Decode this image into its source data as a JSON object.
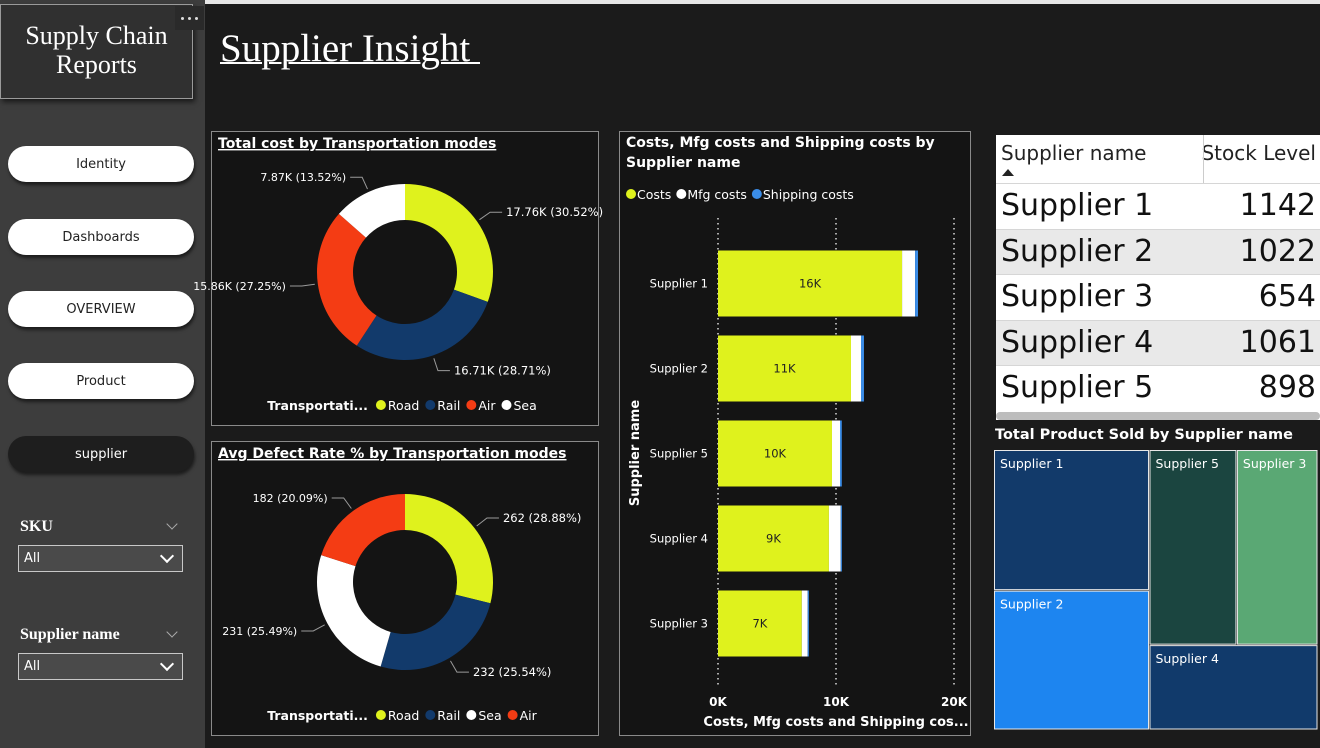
{
  "sidebar": {
    "title": "Supply Chain Reports",
    "buttons": [
      "Identity",
      "Dashboards",
      "OVERVIEW",
      "Product",
      "supplier"
    ],
    "slicers": [
      {
        "label": "SKU",
        "value": "All"
      },
      {
        "label": "Supplier name",
        "value": "All"
      }
    ]
  },
  "header": {
    "title": "Supplier Insight "
  },
  "table": {
    "columns": [
      "Supplier name",
      "Stock Level"
    ],
    "rows": [
      [
        "Supplier 1",
        1142
      ],
      [
        "Supplier 2",
        1022
      ],
      [
        "Supplier 3",
        654
      ],
      [
        "Supplier 4",
        1061
      ],
      [
        "Supplier 5",
        898
      ]
    ]
  },
  "chart_data": [
    {
      "type": "donut",
      "title": "Total cost by Transportation modes",
      "legend_title": "Transportati...",
      "categories": [
        "Road",
        "Rail",
        "Air",
        "Sea"
      ],
      "values": [
        17760,
        16710,
        15860,
        7870
      ],
      "value_labels": [
        "17.76K (30.52%)",
        "16.71K (28.71%)",
        "15.86K (27.25%)",
        "7.87K (13.52%)"
      ],
      "colors": [
        "#dff21d",
        "#123a6b",
        "#f43c14",
        "#ffffff"
      ]
    },
    {
      "type": "donut",
      "title": "Avg Defect Rate % by Transportation modes",
      "legend_title": "Transportati...",
      "categories": [
        "Road",
        "Rail",
        "Sea",
        "Air"
      ],
      "values": [
        262,
        232,
        231,
        182
      ],
      "value_labels": [
        "262 (28.88%)",
        "232 (25.54%)",
        "231 (25.49%)",
        "182 (20.09%)"
      ],
      "colors": [
        "#dff21d",
        "#123a6b",
        "#ffffff",
        "#f43c14"
      ]
    },
    {
      "type": "bar",
      "orientation": "horizontal",
      "stacked": true,
      "title": "Costs, Mfg costs and Shipping costs by Supplier name",
      "x_label": "Costs, Mfg costs and Shipping cos...",
      "y_label": "Supplier name",
      "categories": [
        "Supplier 1",
        "Supplier 2",
        "Supplier 5",
        "Supplier 4",
        "Supplier 3"
      ],
      "series": [
        {
          "name": "Costs",
          "color": "#dff21d",
          "values": [
            15600,
            11270,
            9660,
            9400,
            7100
          ],
          "value_labels": [
            "16K",
            "11K",
            "10K",
            "9K",
            "7K"
          ]
        },
        {
          "name": "Mfg costs",
          "color": "#ffffff",
          "values": [
            1100,
            850,
            680,
            1000,
            500
          ]
        },
        {
          "name": "Shipping costs",
          "color": "#3b8de8",
          "values": [
            250,
            250,
            150,
            100,
            100
          ]
        }
      ],
      "xlim": [
        0,
        20000
      ],
      "xticks": [
        {
          "value": 0,
          "label": "0K"
        },
        {
          "value": 10000,
          "label": "10K"
        },
        {
          "value": 20000,
          "label": "20K"
        }
      ],
      "grid": true
    },
    {
      "type": "treemap",
      "title": "Total Product Sold by Supplier name",
      "categories": [
        "Supplier 1",
        "Supplier 2",
        "Supplier 5",
        "Supplier 3",
        "Supplier 4"
      ],
      "values": [
        11100,
        11000,
        8660,
        8030,
        7260
      ],
      "colors": [
        "#123a6a",
        "#1d85f0",
        "#1b4540",
        "#5aa874",
        "#113a6b"
      ]
    }
  ]
}
